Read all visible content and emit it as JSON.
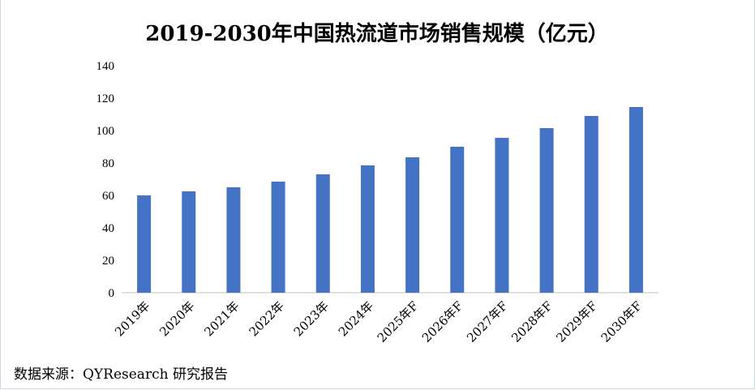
{
  "chart_data": {
    "type": "bar",
    "title": "2019-2030年中国热流道市场销售规模（亿元）",
    "categories": [
      "2019年",
      "2020年",
      "2021年",
      "2022年",
      "2023年",
      "2024年",
      "2025年F",
      "2026年F",
      "2027年F",
      "2028年F",
      "2029年F",
      "2030年F"
    ],
    "values": [
      60,
      62.5,
      65,
      68.5,
      73,
      78.5,
      83.5,
      90,
      95.5,
      101.5,
      109,
      114.5
    ],
    "ylim": [
      0,
      140
    ],
    "yticks": [
      0,
      20,
      40,
      60,
      80,
      100,
      120,
      140
    ],
    "grid": false,
    "bar_color": "#4472C4",
    "xlabel": "",
    "ylabel": ""
  },
  "source": "数据来源：QYResearch 研究报告"
}
